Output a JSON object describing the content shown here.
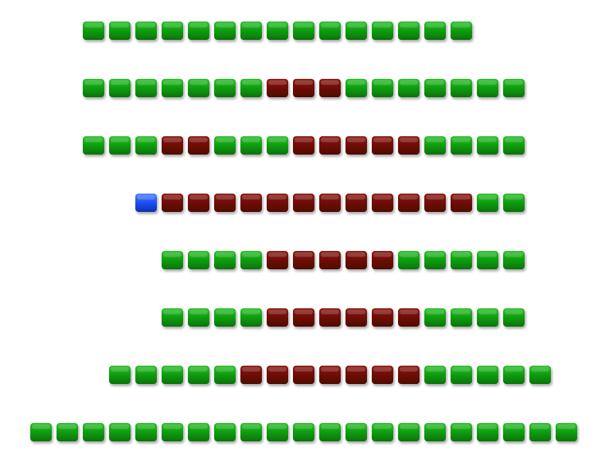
{
  "board": {
    "rows": [
      [
        null,
        null,
        "green",
        "green",
        "green",
        "green",
        "green",
        "green",
        "green",
        "green",
        "green",
        "green",
        "green",
        "green",
        "green",
        "green",
        "green",
        null,
        null,
        null,
        null
      ],
      [
        null,
        null,
        "green",
        "green",
        "green",
        "green",
        "green",
        "green",
        "green",
        "red",
        "red",
        "red",
        "green",
        "green",
        "green",
        "green",
        "green",
        "green",
        "green",
        null,
        null
      ],
      [
        null,
        null,
        "green",
        "green",
        "green",
        "red",
        "red",
        "green",
        "green",
        "green",
        "red",
        "red",
        "red",
        "red",
        "red",
        "green",
        "green",
        "green",
        "green",
        null,
        null
      ],
      [
        null,
        null,
        null,
        null,
        "blue",
        "red",
        "red",
        "red",
        "red",
        "red",
        "red",
        "red",
        "red",
        "red",
        "red",
        "red",
        "red",
        "green",
        "green",
        null,
        null
      ],
      [
        null,
        null,
        null,
        null,
        null,
        "green",
        "green",
        "green",
        "green",
        "red",
        "red",
        "red",
        "red",
        "red",
        "green",
        "green",
        "green",
        "green",
        "green",
        null,
        null
      ],
      [
        null,
        null,
        null,
        null,
        null,
        "green",
        "green",
        "green",
        "green",
        "red",
        "red",
        "red",
        "red",
        "red",
        "red",
        "green",
        "green",
        "green",
        "green",
        null,
        null
      ],
      [
        null,
        null,
        null,
        "green",
        "green",
        "green",
        "green",
        "green",
        "red",
        "red",
        "red",
        "red",
        "red",
        "red",
        "red",
        "green",
        "green",
        "green",
        "green",
        "green",
        null
      ],
      [
        "green",
        "green",
        "green",
        "green",
        "green",
        "green",
        "green",
        "green",
        "green",
        "green",
        "green",
        "green",
        "green",
        "green",
        "green",
        "green",
        "green",
        "green",
        "green",
        "green",
        "green"
      ]
    ]
  }
}
